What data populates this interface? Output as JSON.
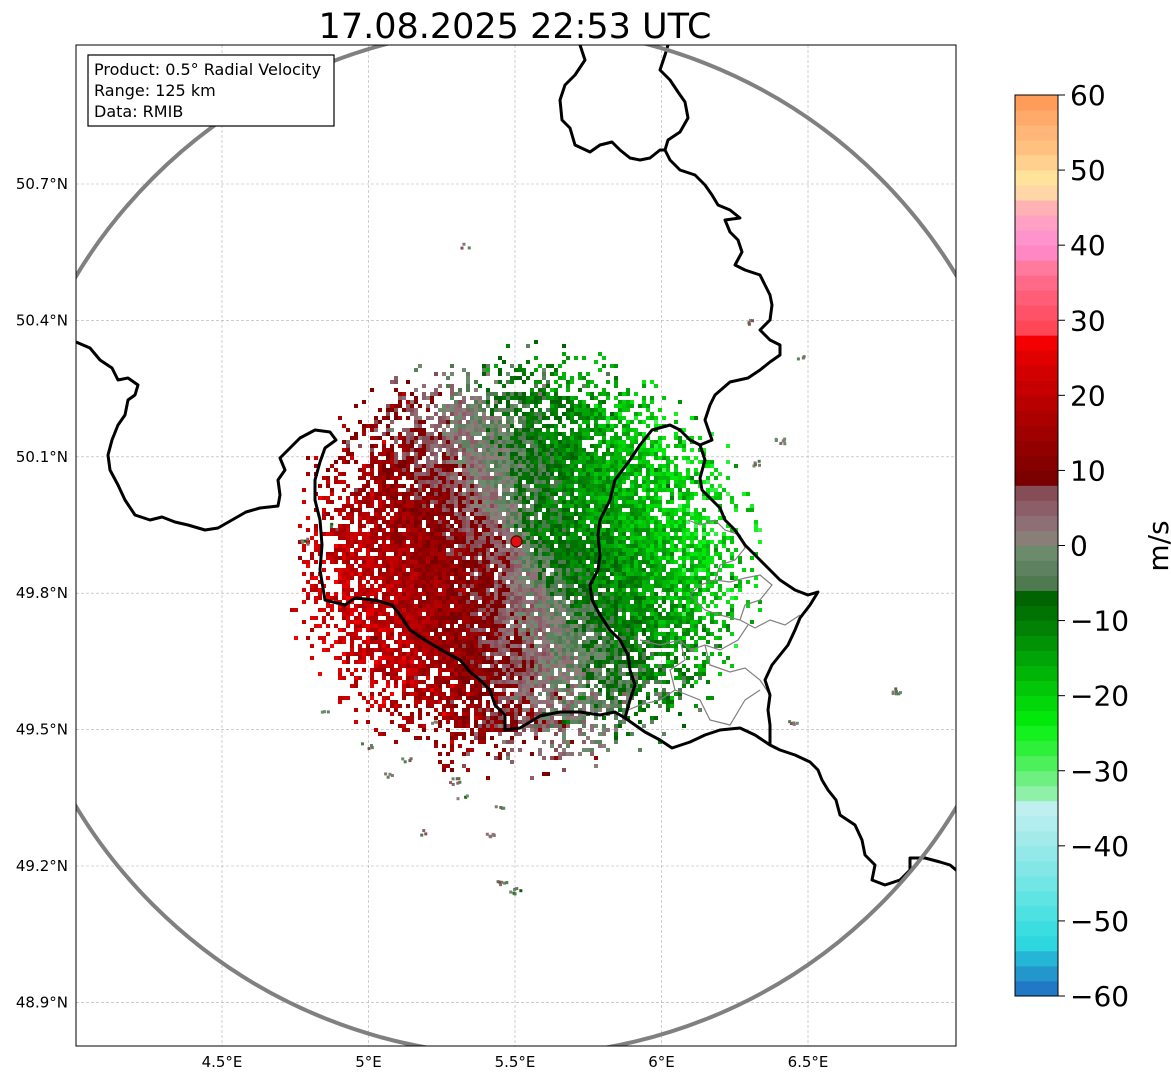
{
  "title": "17.08.2025 22:53 UTC",
  "info_box": {
    "product": "Product: 0.5° Radial Velocity",
    "range": "Range: 125 km",
    "data": "Data: RMIB"
  },
  "map": {
    "x_ticks": [
      {
        "value": 4.5,
        "label": "4.5°E"
      },
      {
        "value": 5.0,
        "label": "5°E"
      },
      {
        "value": 5.5,
        "label": "5.5°E"
      },
      {
        "value": 6.0,
        "label": "6°E"
      },
      {
        "value": 6.5,
        "label": "6.5°E"
      }
    ],
    "y_ticks": [
      {
        "value": 50.7,
        "label": "50.7°N"
      },
      {
        "value": 50.4,
        "label": "50.4°N"
      },
      {
        "value": 50.1,
        "label": "50.1°N"
      },
      {
        "value": 49.8,
        "label": "49.8°N"
      },
      {
        "value": 49.5,
        "label": "49.5°N"
      },
      {
        "value": 49.2,
        "label": "49.2°N"
      },
      {
        "value": 48.9,
        "label": "48.9°N"
      }
    ],
    "lon_range": [
      4.0,
      7.0
    ],
    "lat_range": [
      48.8,
      51.0
    ],
    "radar_site": {
      "lon": 5.505,
      "lat": 49.914
    },
    "range_ring_color": "#808080",
    "border_color": "#000000",
    "admin_border_color": "#808080",
    "grid": true
  },
  "colorbar": {
    "label": "m/s",
    "min": -60,
    "max": 60,
    "ticks": [
      {
        "value": 60,
        "label": "60"
      },
      {
        "value": 50,
        "label": "50"
      },
      {
        "value": 40,
        "label": "40"
      },
      {
        "value": 30,
        "label": "30"
      },
      {
        "value": 20,
        "label": "20"
      },
      {
        "value": 10,
        "label": "10"
      },
      {
        "value": 0,
        "label": "0"
      },
      {
        "value": -10,
        "label": "−10"
      },
      {
        "value": -20,
        "label": "−20"
      },
      {
        "value": -30,
        "label": "−30"
      },
      {
        "value": -40,
        "label": "−40"
      },
      {
        "value": -50,
        "label": "−50"
      },
      {
        "value": -60,
        "label": "−60"
      }
    ],
    "stops": [
      {
        "from": -60,
        "color": "#2178c4"
      },
      {
        "from": -58,
        "color": "#2397cc"
      },
      {
        "from": -56,
        "color": "#25b5d5"
      },
      {
        "from": -54,
        "color": "#2ed6de"
      },
      {
        "from": -52,
        "color": "#3bdde0"
      },
      {
        "from": -50,
        "color": "#4ee1e2"
      },
      {
        "from": -48,
        "color": "#5fe3e3"
      },
      {
        "from": -46,
        "color": "#72e5e5"
      },
      {
        "from": -44,
        "color": "#84e7e7"
      },
      {
        "from": -42,
        "color": "#93e9e9"
      },
      {
        "from": -40,
        "color": "#a3ebeb"
      },
      {
        "from": -38,
        "color": "#b2eeee"
      },
      {
        "from": -36,
        "color": "#bff0ef"
      },
      {
        "from": -34,
        "color": "#8ff0a8"
      },
      {
        "from": -32,
        "color": "#6df07f"
      },
      {
        "from": -30,
        "color": "#4cf05a"
      },
      {
        "from": -28,
        "color": "#2ef03a"
      },
      {
        "from": -26,
        "color": "#15f01f"
      },
      {
        "from": -24,
        "color": "#02e80a"
      },
      {
        "from": -22,
        "color": "#02d709"
      },
      {
        "from": -20,
        "color": "#02c608"
      },
      {
        "from": -18,
        "color": "#01b507"
      },
      {
        "from": -16,
        "color": "#01a406"
      },
      {
        "from": -14,
        "color": "#019305"
      },
      {
        "from": -12,
        "color": "#018204"
      },
      {
        "from": -10,
        "color": "#007303"
      },
      {
        "from": -8,
        "color": "#006402"
      },
      {
        "from": -6,
        "color": "#4f7a4f"
      },
      {
        "from": -4,
        "color": "#5e8260"
      },
      {
        "from": -2,
        "color": "#6c8a6c"
      },
      {
        "from": 0,
        "color": "#8a7f78"
      },
      {
        "from": 2,
        "color": "#8e6f76"
      },
      {
        "from": 4,
        "color": "#8c5e68"
      },
      {
        "from": 6,
        "color": "#874d57"
      },
      {
        "from": 8,
        "color": "#7a0000"
      },
      {
        "from": 10,
        "color": "#860000"
      },
      {
        "from": 12,
        "color": "#920000"
      },
      {
        "from": 14,
        "color": "#9f0000"
      },
      {
        "from": 16,
        "color": "#ac0000"
      },
      {
        "from": 18,
        "color": "#b90000"
      },
      {
        "from": 20,
        "color": "#c60000"
      },
      {
        "from": 22,
        "color": "#d30000"
      },
      {
        "from": 24,
        "color": "#e00000"
      },
      {
        "from": 26,
        "color": "#f50000"
      },
      {
        "from": 28,
        "color": "#ff4757"
      },
      {
        "from": 30,
        "color": "#ff5268"
      },
      {
        "from": 32,
        "color": "#ff5d78"
      },
      {
        "from": 34,
        "color": "#ff6a8a"
      },
      {
        "from": 36,
        "color": "#ff7a9d"
      },
      {
        "from": 38,
        "color": "#ff88c4"
      },
      {
        "from": 40,
        "color": "#ff94cc"
      },
      {
        "from": 42,
        "color": "#ffa0c4"
      },
      {
        "from": 44,
        "color": "#ffb2b4"
      },
      {
        "from": 46,
        "color": "#ffd6a6"
      },
      {
        "from": 48,
        "color": "#ffe39b"
      },
      {
        "from": 50,
        "color": "#ffd08e"
      },
      {
        "from": 52,
        "color": "#ffc080"
      },
      {
        "from": 54,
        "color": "#ffb676"
      },
      {
        "from": 56,
        "color": "#ffa96a"
      },
      {
        "from": 58,
        "color": "#ff9c5a"
      }
    ]
  }
}
